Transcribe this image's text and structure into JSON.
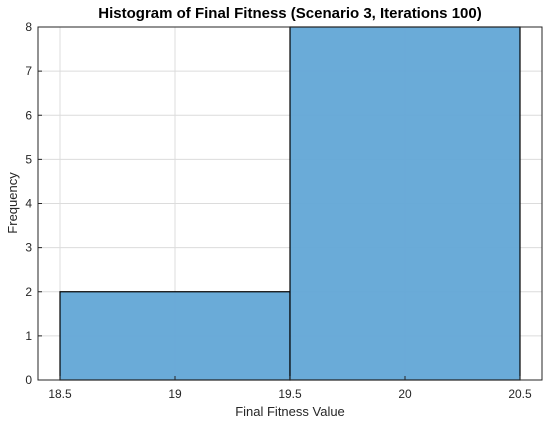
{
  "chart_data": {
    "type": "bar",
    "title": "Histogram of Final Fitness (Scenario 3, Iterations 100)",
    "xlabel": "Final Fitness Value",
    "ylabel": "Frequency",
    "xlim": [
      18.5,
      20.5
    ],
    "ylim": [
      0,
      8
    ],
    "x_ticks": [
      "18.5",
      "19",
      "19.5",
      "20",
      "20.5"
    ],
    "y_ticks": [
      "0",
      "1",
      "2",
      "3",
      "4",
      "5",
      "6",
      "7",
      "8"
    ],
    "bins": [
      {
        "start": 18.5,
        "end": 19.5,
        "value": 2
      },
      {
        "start": 19.5,
        "end": 20.5,
        "value": 8
      }
    ],
    "bar_color": "#62a6d6",
    "edge_color": "#000000",
    "grid": true
  }
}
